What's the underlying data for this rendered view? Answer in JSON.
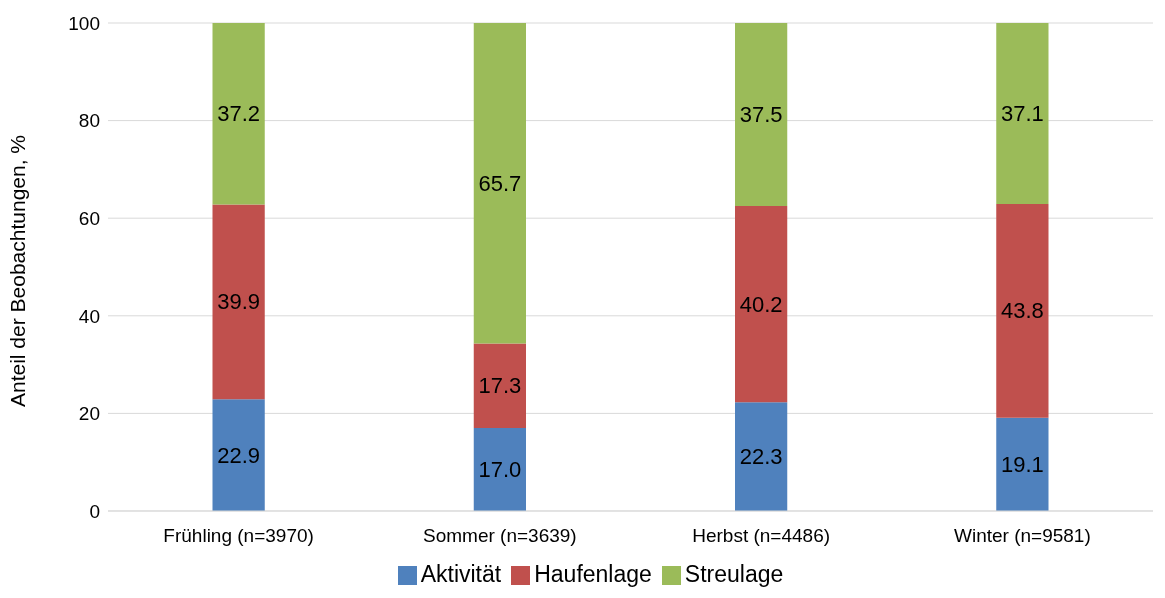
{
  "chart_data": {
    "type": "bar",
    "stacked": true,
    "ylabel": "Anteil der Beobachtungen, %",
    "categories": [
      "Frühling (n=3970)",
      "Sommer (n=3639)",
      "Herbst (n=4486)",
      "Winter (n=9581)"
    ],
    "series": [
      {
        "name": "Aktivität",
        "color": "#4f81bd",
        "values": [
          22.9,
          17.0,
          22.3,
          19.1
        ],
        "value_labels": [
          "22.9",
          "17.0",
          "22.3",
          "19.1"
        ]
      },
      {
        "name": "Haufenlage",
        "color": "#c0504d",
        "values": [
          39.9,
          17.3,
          40.2,
          43.8
        ],
        "value_labels": [
          "39.9",
          "17.3",
          "40.2",
          "43.8"
        ]
      },
      {
        "name": "Streulage",
        "color": "#9bbb59",
        "values": [
          37.2,
          65.7,
          37.5,
          37.1
        ],
        "value_labels": [
          "37.2",
          "65.7",
          "37.5",
          "37.1"
        ]
      }
    ],
    "ylim": [
      0,
      100
    ],
    "yticks": [
      0,
      20,
      40,
      60,
      80,
      100
    ],
    "grid": "y",
    "legend": "bottom"
  }
}
